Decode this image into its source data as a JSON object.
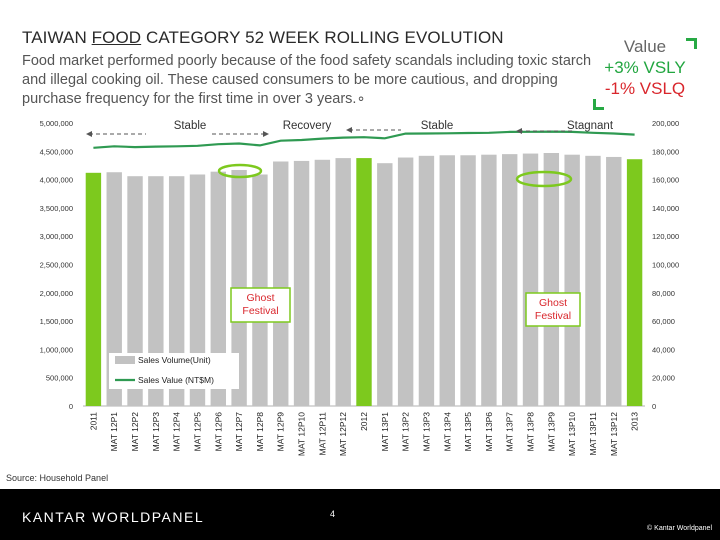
{
  "header": {
    "title_pre": "TAIWAN ",
    "title_underlined": "FOOD",
    "title_post": " CATEGORY 52 WEEK ROLLING EVOLUTION",
    "subtitle": "Food market performed poorly because of the food safety scandals including toxic starch and illegal cooking oil. These caused consumers to be more cautious, and dropping purchase frequency for the first time in over 3 years.∘"
  },
  "value_box": {
    "label": "Value",
    "vsly": "+3% VSLY",
    "vslq": "-1% VSLQ"
  },
  "colors": {
    "bar": "#c2c2c2",
    "bar_highlight": "#7dc91e",
    "line": "#2f9a52",
    "value_green": "#22a640",
    "value_red": "#d9262c"
  },
  "chart_data": {
    "type": "bar",
    "categories": [
      "2011",
      "MAT 12P1",
      "MAT 12P2",
      "MAT 12P3",
      "MAT 12P4",
      "MAT 12P5",
      "MAT 12P6",
      "MAT 12P7",
      "MAT 12P8",
      "MAT 12P9",
      "MAT 12P10",
      "MAT 12P11",
      "MAT 12P12",
      "2012",
      "MAT 13P1",
      "MAT 13P2",
      "MAT 13P3",
      "MAT 13P4",
      "MAT 13P5",
      "MAT 13P6",
      "MAT 13P7",
      "MAT 13P8",
      "MAT 13P9",
      "MAT 13P10",
      "MAT 13P11",
      "MAT 13P12",
      "2013"
    ],
    "highlighted": [
      0,
      13,
      26
    ],
    "series": [
      {
        "name": "Sales Volume(Unit)",
        "type": "bar",
        "axis": "left",
        "values": [
          4120000,
          4130000,
          4060000,
          4060000,
          4060000,
          4090000,
          4140000,
          4170000,
          4090000,
          4320000,
          4330000,
          4350000,
          4380000,
          4380000,
          4290000,
          4390000,
          4420000,
          4430000,
          4430000,
          4440000,
          4450000,
          4460000,
          4470000,
          4440000,
          4420000,
          4400000,
          4360000
        ]
      },
      {
        "name": "Sales Value (NT$M)",
        "type": "line",
        "axis": "right",
        "values": [
          182500,
          183500,
          183000,
          183300,
          183500,
          183900,
          185000,
          185500,
          184200,
          187500,
          188000,
          189000,
          189700,
          190000,
          189200,
          192500,
          192600,
          192700,
          192900,
          193100,
          193700,
          193800,
          193900,
          193700,
          193100,
          192600,
          191800
        ]
      }
    ],
    "y_left": {
      "ticks": [
        "0",
        "500,000",
        "1,000,000",
        "1,500,000",
        "2,000,000",
        "2,500,000",
        "3,000,000",
        "3,500,000",
        "4,000,000",
        "4,500,000",
        "5,000,000"
      ],
      "min": 0,
      "max": 5000000
    },
    "y_right": {
      "ticks": [
        "0",
        "20,000",
        "40,000",
        "60,000",
        "80,000",
        "100,000",
        "120,000",
        "140,000",
        "160,000",
        "180,000",
        "200,000"
      ],
      "min": 0,
      "max": 200000
    },
    "phase_labels": [
      "Stable",
      "Recovery",
      "Stable",
      "Stagnant"
    ],
    "annotations": [
      "Ghost\nFestival",
      "Ghost\nFestival"
    ],
    "legend": {
      "placement": "bottom-left"
    }
  },
  "footer": {
    "source": "Source: Household Panel",
    "brand": "KANTAR WORLDPANEL",
    "page_number": "4",
    "copyright": "© Kantar Worldpanel"
  }
}
